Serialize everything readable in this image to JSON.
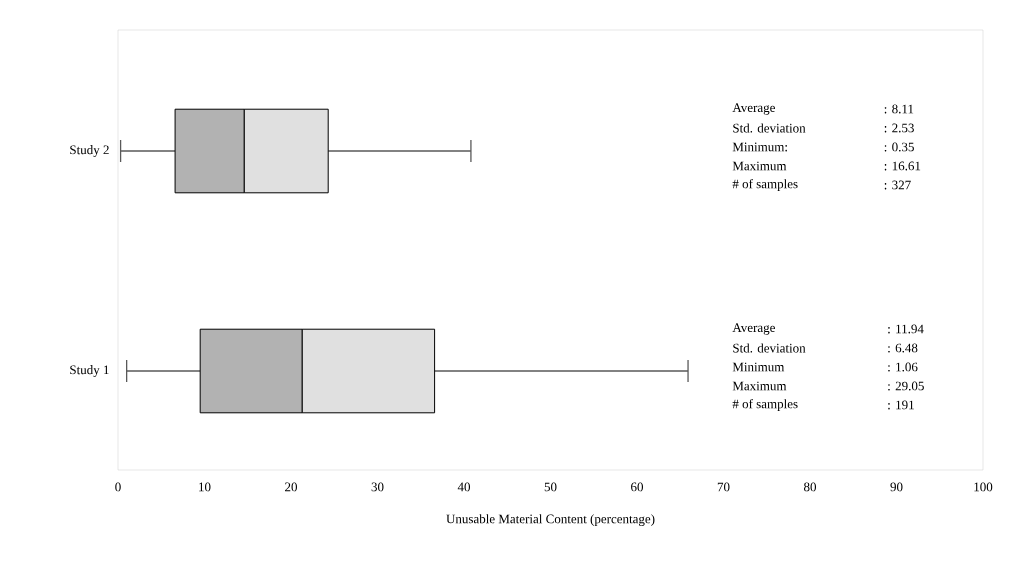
{
  "chart_data": {
    "type": "box",
    "orientation": "horizontal",
    "xlabel": "Unusable Material Content (percentage)",
    "categories": [
      "Study 2",
      "Study 1"
    ],
    "boxes": [
      {
        "low": 0.3,
        "q1": 6.6,
        "median": 14.6,
        "q3": 24.3,
        "high": 40.8
      },
      {
        "low": 1.0,
        "q1": 9.5,
        "median": 21.3,
        "q3": 36.6,
        "high": 65.9
      }
    ],
    "xlim": [
      0,
      100
    ],
    "xticks": [
      0,
      10,
      20,
      30,
      40,
      50,
      60,
      70,
      80,
      90,
      100
    ],
    "annotations": [
      "Average",
      ": 8.11",
      "Std. deviation",
      ": 2.53",
      "Minimum:",
      ": 0.35",
      "Maximum",
      ": 16.61",
      "# of samples",
      ": 327",
      "Average",
      ": 11.94",
      "Std. deviation",
      ": 6.48",
      "Minimum",
      ": 1.06",
      "Maximum",
      ": 29.05",
      "# of samples",
      ": 191"
    ]
  }
}
